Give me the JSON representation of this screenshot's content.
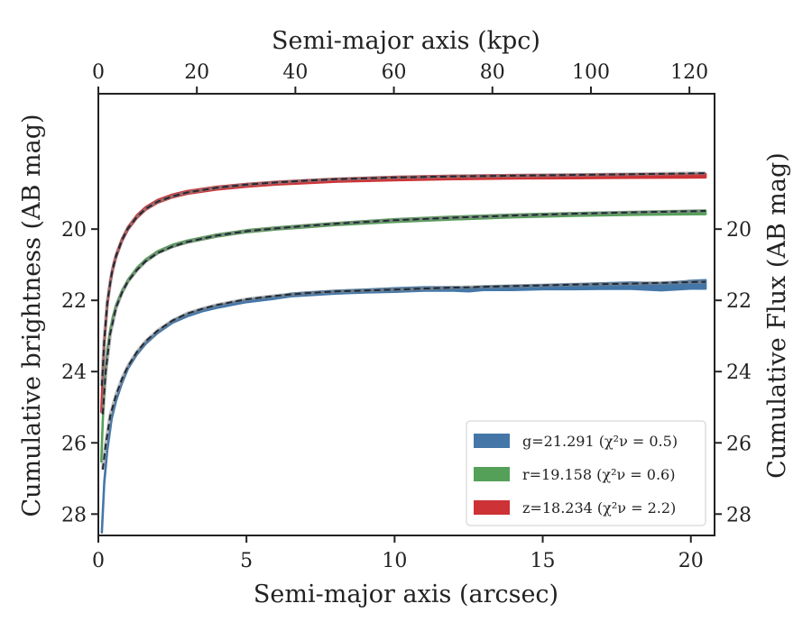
{
  "chart_data": {
    "type": "line",
    "xlabel": "Semi-major axis (arcsec)",
    "ylabel": "Cumulative brightness (AB mag)",
    "top_xlabel": "Semi-major axis (kpc)",
    "right_ylabel": "Cumulative Flux (AB mag)",
    "xlim": [
      0,
      20.8
    ],
    "ylim": [
      28.6,
      16.2
    ],
    "y_inverted": true,
    "top_xlim": [
      0,
      125.1
    ],
    "x_ticks": [
      0,
      5,
      10,
      15,
      20
    ],
    "y_ticks": [
      20,
      22,
      24,
      26,
      28
    ],
    "top_x_ticks": [
      0,
      20,
      40,
      60,
      80,
      100,
      120
    ],
    "grid": false,
    "legend_position": "lower right",
    "series": [
      {
        "name": "g=21.291 (χ²ν = 0.5)",
        "color": "#4477a8",
        "x": [
          0.12,
          0.2,
          0.3,
          0.45,
          0.6,
          0.8,
          1.0,
          1.3,
          1.6,
          2.0,
          2.5,
          3.0,
          3.5,
          4.0,
          5.0,
          6.0,
          6.5,
          7.0,
          8.0,
          9.0,
          10.0,
          11.0,
          12.0,
          12.5,
          13.0,
          14.0,
          15.0,
          16.0,
          17.0,
          18.0,
          19.0,
          20.0,
          20.5
        ],
        "y": [
          28.5,
          27.1,
          26.2,
          25.3,
          24.8,
          24.3,
          23.9,
          23.5,
          23.2,
          22.9,
          22.6,
          22.42,
          22.28,
          22.18,
          22.02,
          21.92,
          21.85,
          21.82,
          21.77,
          21.74,
          21.71,
          21.68,
          21.68,
          21.7,
          21.66,
          21.65,
          21.63,
          21.62,
          21.6,
          21.59,
          21.62,
          21.56,
          21.55
        ],
        "band_halfwidth": [
          0.02,
          0.02,
          0.02,
          0.02,
          0.02,
          0.02,
          0.02,
          0.02,
          0.02,
          0.02,
          0.03,
          0.03,
          0.03,
          0.03,
          0.03,
          0.03,
          0.04,
          0.04,
          0.04,
          0.04,
          0.05,
          0.05,
          0.05,
          0.05,
          0.05,
          0.06,
          0.06,
          0.07,
          0.08,
          0.09,
          0.1,
          0.11,
          0.12
        ],
        "model_x": [
          0.15,
          0.25,
          0.4,
          0.6,
          0.8,
          1.0,
          1.3,
          1.6,
          2.0,
          2.5,
          3.0,
          3.5,
          4.0,
          5.0,
          6.0,
          7.0,
          8.0,
          10.0,
          12.0,
          14.0,
          16.0,
          18.0,
          20.5
        ],
        "model_y": [
          26.75,
          26.05,
          25.25,
          24.65,
          24.2,
          23.85,
          23.45,
          23.15,
          22.85,
          22.57,
          22.37,
          22.24,
          22.13,
          21.97,
          21.87,
          21.8,
          21.75,
          21.7,
          21.64,
          21.6,
          21.56,
          21.53,
          21.48
        ]
      },
      {
        "name": "r=19.158 (χ²ν = 0.6)",
        "color": "#55a058",
        "x": [
          0.1,
          0.15,
          0.2,
          0.3,
          0.4,
          0.5,
          0.6,
          0.8,
          1.0,
          1.3,
          1.6,
          2.0,
          2.5,
          3.0,
          4.0,
          5.0,
          6.0,
          7.0,
          8.0,
          10.0,
          12.0,
          14.0,
          16.0,
          18.0,
          20.5
        ],
        "y": [
          26.5,
          25.4,
          24.4,
          23.4,
          22.85,
          22.45,
          22.15,
          21.75,
          21.45,
          21.12,
          20.88,
          20.65,
          20.47,
          20.35,
          20.18,
          20.06,
          19.98,
          19.92,
          19.86,
          19.76,
          19.69,
          19.63,
          19.59,
          19.56,
          19.53
        ],
        "band_halfwidth": [
          0.03,
          0.03,
          0.03,
          0.03,
          0.03,
          0.03,
          0.03,
          0.03,
          0.03,
          0.03,
          0.03,
          0.03,
          0.03,
          0.03,
          0.03,
          0.03,
          0.03,
          0.03,
          0.03,
          0.04,
          0.04,
          0.04,
          0.04,
          0.04,
          0.05
        ],
        "model_x": [
          0.15,
          0.25,
          0.4,
          0.6,
          0.8,
          1.0,
          1.3,
          1.6,
          2.0,
          2.5,
          3.0,
          4.0,
          5.0,
          6.0,
          7.0,
          8.0,
          10.0,
          12.0,
          14.0,
          16.0,
          18.0,
          20.5
        ],
        "model_y": [
          25.2,
          24.0,
          22.95,
          22.2,
          21.78,
          21.47,
          21.15,
          20.9,
          20.67,
          20.49,
          20.36,
          20.18,
          20.06,
          19.98,
          19.91,
          19.85,
          19.75,
          19.68,
          19.62,
          19.57,
          19.53,
          19.49
        ]
      },
      {
        "name": "z=18.234 (χ²ν = 2.2)",
        "color": "#cd3336",
        "x": [
          0.1,
          0.15,
          0.2,
          0.3,
          0.4,
          0.5,
          0.6,
          0.8,
          1.0,
          1.3,
          1.6,
          2.0,
          2.5,
          3.0,
          4.0,
          5.0,
          6.0,
          7.0,
          8.0,
          10.0,
          12.0,
          14.0,
          16.0,
          18.0,
          20.5
        ],
        "y": [
          25.1,
          24.1,
          23.2,
          22.15,
          21.5,
          21.05,
          20.75,
          20.3,
          19.98,
          19.65,
          19.42,
          19.22,
          19.07,
          18.97,
          18.85,
          18.77,
          18.71,
          18.67,
          18.63,
          18.58,
          18.55,
          18.53,
          18.52,
          18.51,
          18.5
        ],
        "band_halfwidth": [
          0.04,
          0.04,
          0.04,
          0.04,
          0.04,
          0.04,
          0.04,
          0.04,
          0.04,
          0.04,
          0.04,
          0.04,
          0.04,
          0.04,
          0.04,
          0.04,
          0.04,
          0.04,
          0.04,
          0.05,
          0.05,
          0.05,
          0.05,
          0.05,
          0.05
        ],
        "model_x": [
          0.12,
          0.2,
          0.3,
          0.45,
          0.6,
          0.8,
          1.0,
          1.3,
          1.6,
          2.0,
          2.5,
          3.0,
          4.0,
          5.0,
          6.0,
          7.0,
          8.0,
          10.0,
          12.0,
          14.0,
          16.0,
          18.0,
          20.5
        ],
        "model_y": [
          24.4,
          23.1,
          22.05,
          21.25,
          20.75,
          20.3,
          19.98,
          19.66,
          19.43,
          19.23,
          19.08,
          18.97,
          18.84,
          18.75,
          18.69,
          18.64,
          18.6,
          18.55,
          18.52,
          18.5,
          18.48,
          18.46,
          18.43
        ]
      }
    ]
  }
}
